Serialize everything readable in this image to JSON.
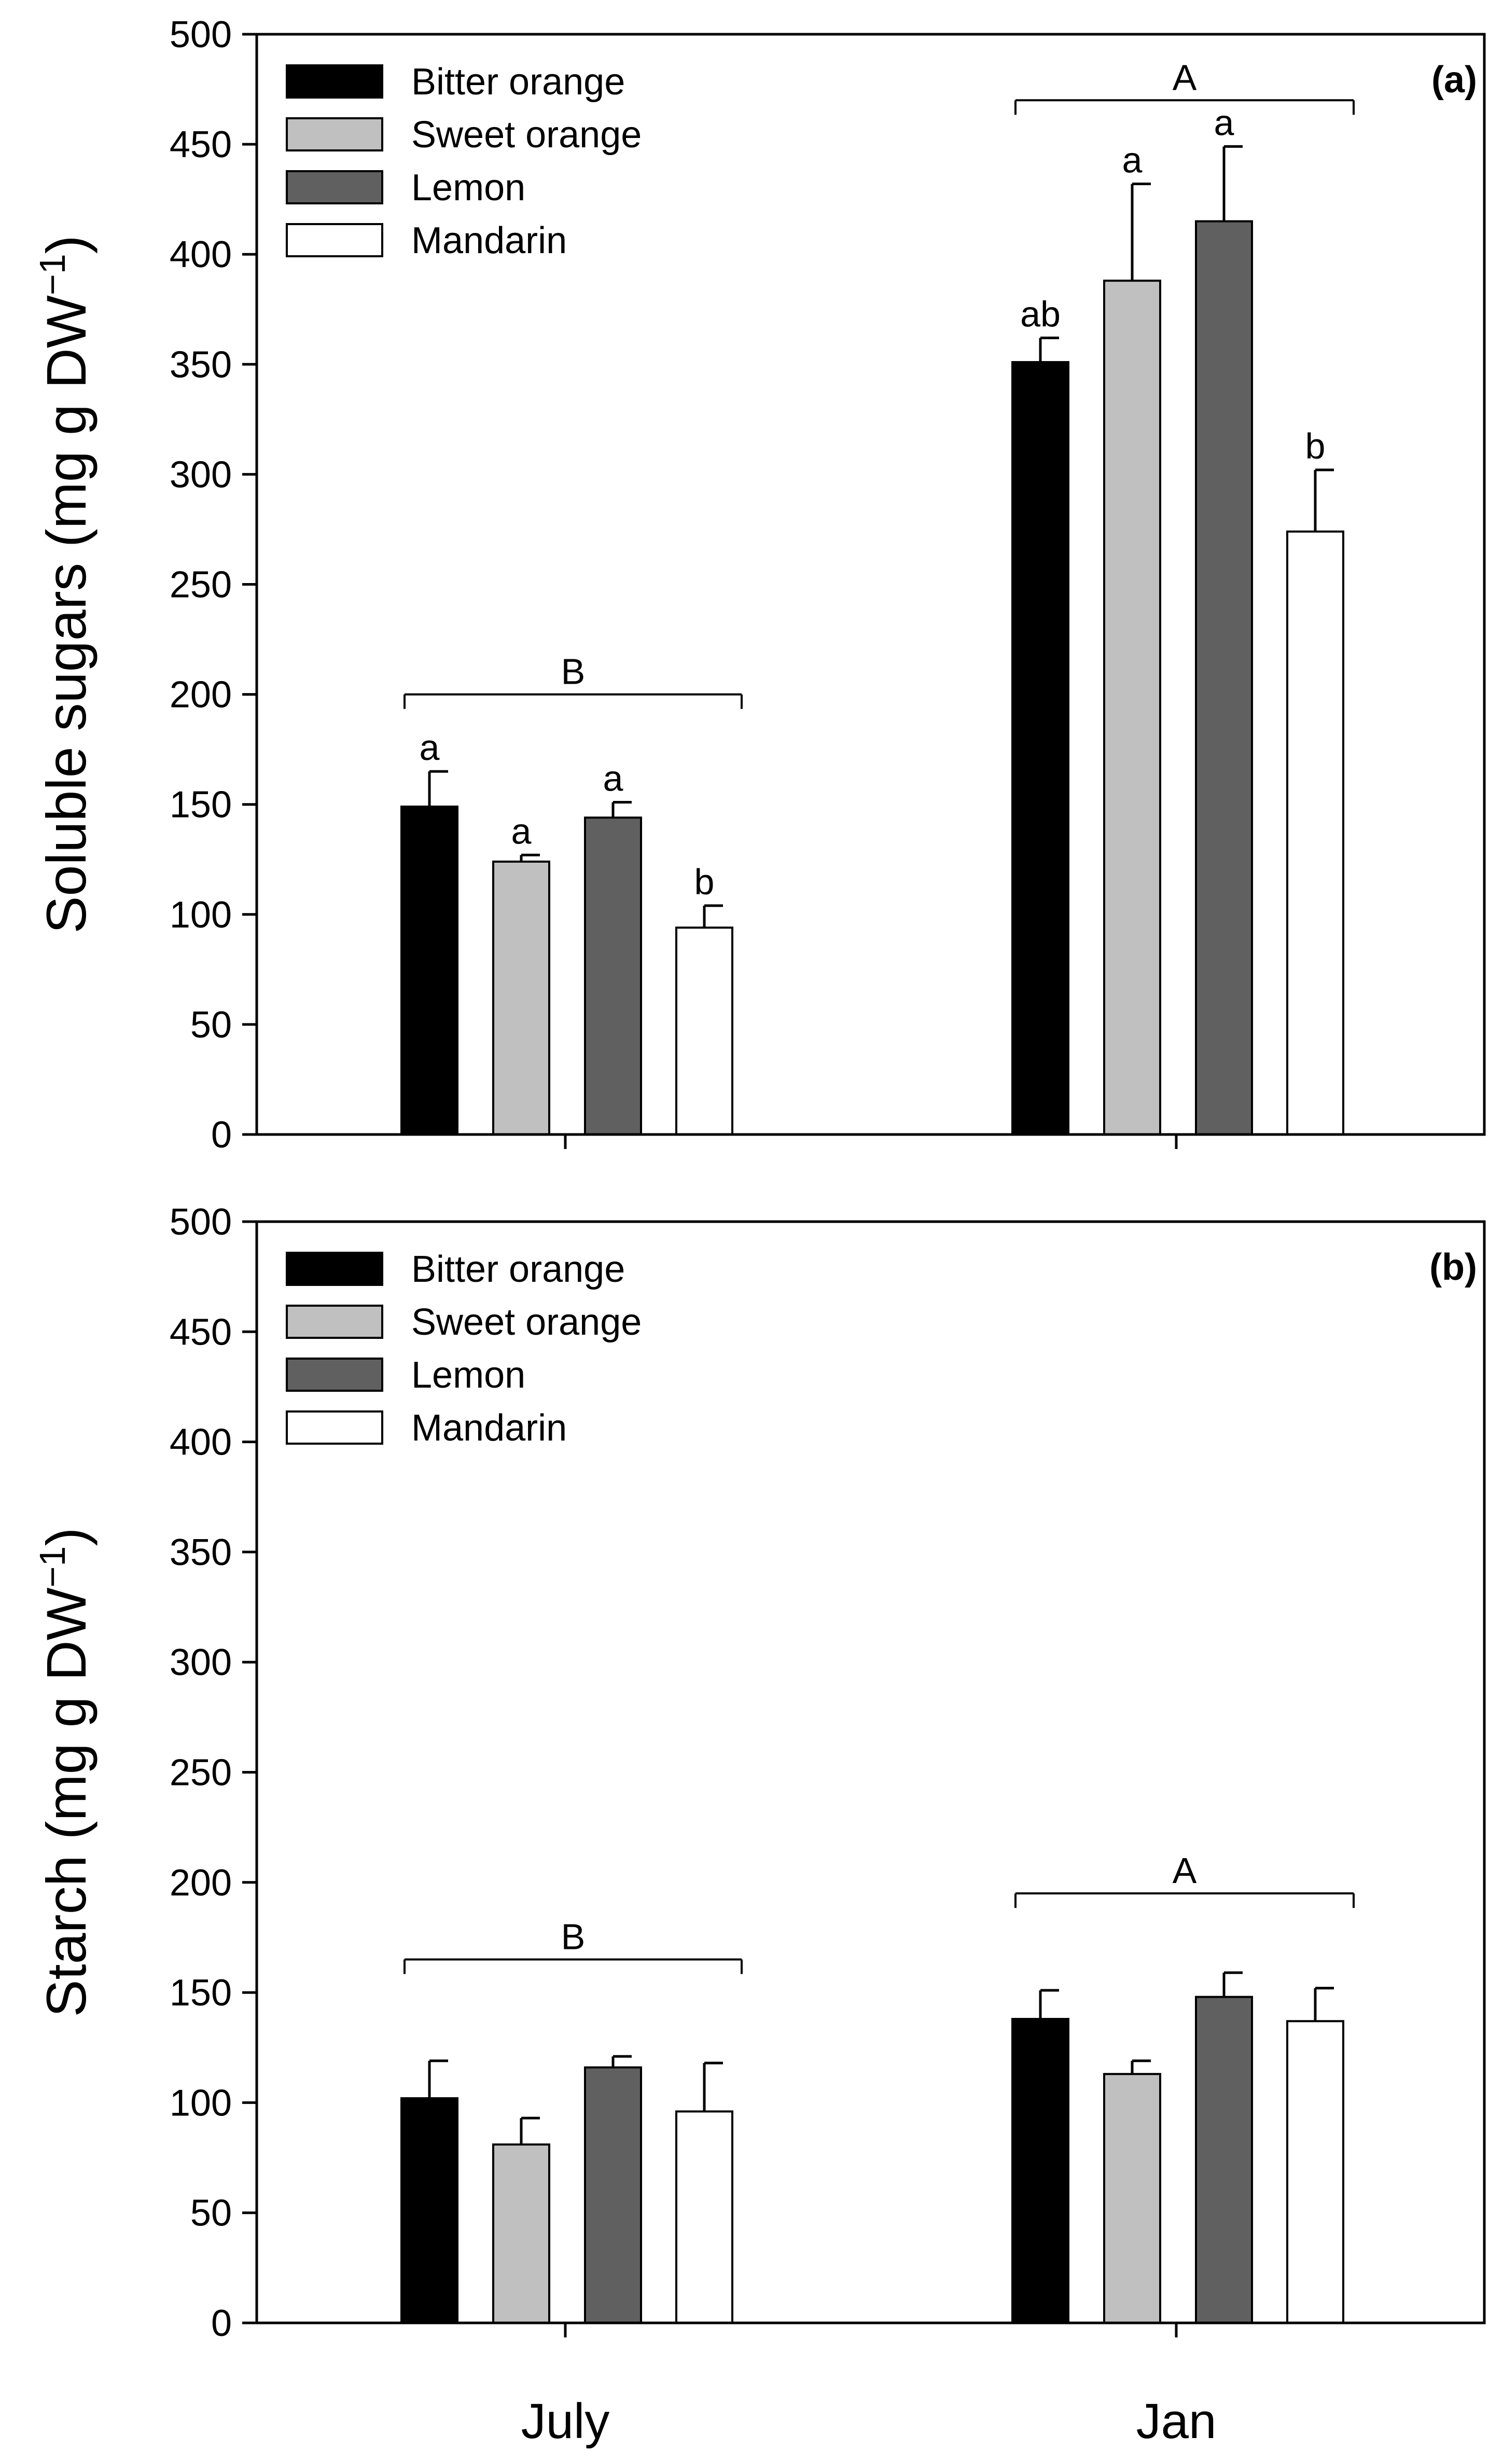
{
  "chart_data": [
    {
      "type": "bar",
      "panel_label": "(a)",
      "categories": [
        "July",
        "Jan"
      ],
      "ylabel": "Soluble sugars (mg g DW",
      "ylabel_sup": "−1",
      "ylabel_close": ")",
      "ylim": [
        0,
        500
      ],
      "yticks": [
        "0",
        "50",
        "100",
        "150",
        "200",
        "250",
        "300",
        "350",
        "400",
        "450",
        "500"
      ],
      "legend_position": "top-left",
      "series": [
        {
          "name": "Bitter orange",
          "color": "#000000",
          "values": [
            149,
            351
          ],
          "errors": [
            16,
            11
          ],
          "letters": [
            "a",
            "ab"
          ]
        },
        {
          "name": "Sweet orange",
          "color": "#c0c0c0",
          "values": [
            124,
            388
          ],
          "errors": [
            3,
            44
          ],
          "letters": [
            "a",
            "a"
          ]
        },
        {
          "name": "Lemon",
          "color": "#606060",
          "values": [
            144,
            415
          ],
          "errors": [
            7,
            34
          ],
          "letters": [
            "a",
            "a"
          ]
        },
        {
          "name": "Mandarin",
          "color": "#ffffff",
          "values": [
            94,
            274
          ],
          "errors": [
            10,
            28
          ],
          "letters": [
            "b",
            "b"
          ]
        }
      ],
      "group_letters": [
        "B",
        "A"
      ],
      "group_letter_values": [
        200,
        470
      ]
    },
    {
      "type": "bar",
      "panel_label": "(b)",
      "categories": [
        "July",
        "Jan"
      ],
      "ylabel": "Starch (mg g DW",
      "ylabel_sup": "−1",
      "ylabel_close": ")",
      "ylim": [
        0,
        500
      ],
      "yticks": [
        "0",
        "50",
        "100",
        "150",
        "200",
        "250",
        "300",
        "350",
        "400",
        "450",
        "500"
      ],
      "legend_position": "top-left",
      "series": [
        {
          "name": "Bitter orange",
          "color": "#000000",
          "values": [
            102,
            138
          ],
          "errors": [
            17,
            13
          ],
          "letters": [
            "",
            ""
          ]
        },
        {
          "name": "Sweet orange",
          "color": "#c0c0c0",
          "values": [
            81,
            113
          ],
          "errors": [
            12,
            6
          ],
          "letters": [
            "",
            ""
          ]
        },
        {
          "name": "Lemon",
          "color": "#606060",
          "values": [
            116,
            148
          ],
          "errors": [
            5,
            11
          ],
          "letters": [
            "",
            ""
          ]
        },
        {
          "name": "Mandarin",
          "color": "#ffffff",
          "values": [
            96,
            137
          ],
          "errors": [
            22,
            15
          ],
          "letters": [
            "",
            ""
          ]
        }
      ],
      "group_letters": [
        "B",
        "A"
      ],
      "group_letter_values": [
        165,
        195
      ]
    }
  ]
}
